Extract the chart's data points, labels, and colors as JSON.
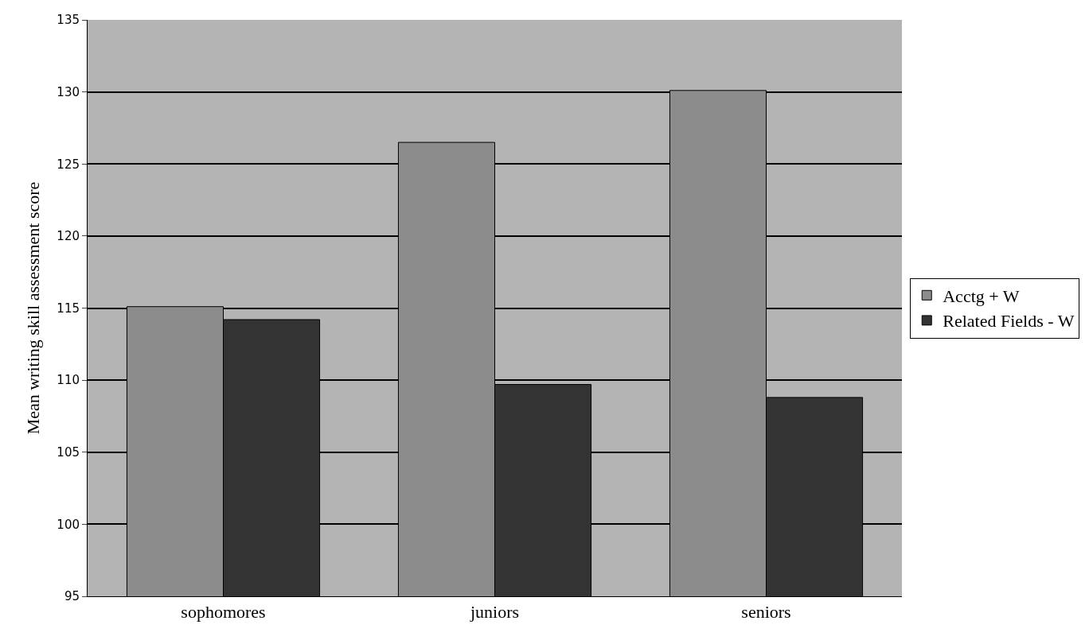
{
  "chart_data": {
    "type": "bar",
    "ylabel": "Mean writing skill assessment score",
    "categories": [
      "sophomores",
      "juniors",
      "seniors"
    ],
    "series": [
      {
        "name": "Acctg + W",
        "color": "#8c8c8c",
        "values": [
          115.1,
          126.5,
          130.1
        ]
      },
      {
        "name": "Related Fields - W",
        "color": "#333333",
        "values": [
          114.2,
          109.7,
          108.8
        ]
      }
    ],
    "ylim": [
      95,
      135
    ],
    "yticks": [
      95,
      100,
      105,
      110,
      115,
      120,
      125,
      130,
      135
    ],
    "grid": "y",
    "legend": "right"
  }
}
